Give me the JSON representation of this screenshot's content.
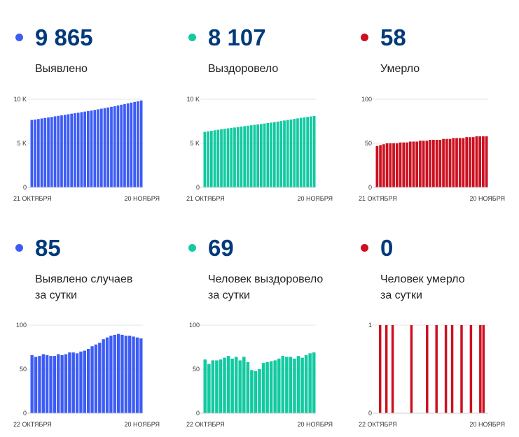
{
  "panels": [
    {
      "value": "9 865",
      "label_lines": [
        "Выявлено"
      ],
      "color": "#3d5cf5",
      "chart_data": {
        "type": "bar",
        "series_color": "#3d5cf5",
        "yticks": [
          "10 K",
          "5 K",
          "0"
        ],
        "ylim": [
          0,
          10000
        ],
        "xlabels": [
          "21 ОКТЯБРЯ",
          "20 НОЯБРЯ"
        ],
        "values": [
          7650,
          7700,
          7760,
          7820,
          7880,
          7940,
          8000,
          8060,
          8120,
          8180,
          8240,
          8300,
          8360,
          8420,
          8480,
          8540,
          8600,
          8660,
          8720,
          8790,
          8860,
          8930,
          9000,
          9070,
          9140,
          9220,
          9300,
          9380,
          9460,
          9540,
          9620,
          9700,
          9780,
          9865
        ]
      }
    },
    {
      "value": "8 107",
      "label_lines": [
        "Выздоровело"
      ],
      "color": "#13c9a1",
      "chart_data": {
        "type": "bar",
        "series_color": "#13c9a1",
        "yticks": [
          "10 K",
          "5 K",
          "0"
        ],
        "ylim": [
          0,
          10000
        ],
        "xlabels": [
          "21 ОКТЯБРЯ",
          "20 НОЯБРЯ"
        ],
        "values": [
          6300,
          6360,
          6420,
          6480,
          6540,
          6600,
          6650,
          6700,
          6750,
          6800,
          6850,
          6900,
          6950,
          7000,
          7050,
          7100,
          7150,
          7200,
          7250,
          7300,
          7350,
          7410,
          7470,
          7530,
          7590,
          7650,
          7710,
          7770,
          7830,
          7890,
          7950,
          8000,
          8050,
          8107
        ]
      }
    },
    {
      "value": "58",
      "label_lines": [
        "Умерло"
      ],
      "color": "#cc1020",
      "chart_data": {
        "type": "bar",
        "series_color": "#cc1020",
        "yticks": [
          "100",
          "50",
          "0"
        ],
        "ylim": [
          0,
          100
        ],
        "xlabels": [
          "21 ОКТЯБРЯ",
          "20 НОЯБРЯ"
        ],
        "values": [
          47,
          48,
          49,
          50,
          50,
          50,
          50,
          51,
          51,
          51,
          52,
          52,
          52,
          53,
          53,
          53,
          54,
          54,
          54,
          54,
          55,
          55,
          55,
          56,
          56,
          56,
          56,
          57,
          57,
          57,
          58,
          58,
          58,
          58
        ]
      }
    },
    {
      "value": "85",
      "label_lines": [
        "Выявлено случаев",
        "за сутки"
      ],
      "color": "#3d5cf5",
      "chart_data": {
        "type": "bar",
        "series_color": "#3d5cf5",
        "yticks": [
          "100",
          "50",
          "0"
        ],
        "ylim": [
          0,
          100
        ],
        "xlabels": [
          "22 ОКТЯБРЯ",
          "20 НОЯБРЯ"
        ],
        "values": [
          66,
          64,
          65,
          67,
          66,
          65,
          65,
          67,
          66,
          67,
          69,
          69,
          68,
          70,
          71,
          73,
          76,
          78,
          80,
          84,
          86,
          88,
          89,
          90,
          89,
          88,
          88,
          87,
          86,
          85
        ]
      }
    },
    {
      "value": "69",
      "label_lines": [
        "Человек выздоровело",
        "за сутки"
      ],
      "color": "#13c9a1",
      "chart_data": {
        "type": "bar",
        "series_color": "#13c9a1",
        "yticks": [
          "100",
          "50",
          "0"
        ],
        "ylim": [
          0,
          100
        ],
        "xlabels": [
          "22 ОКТЯБРЯ",
          "20 НОЯБРЯ"
        ],
        "values": [
          61,
          56,
          60,
          60,
          61,
          63,
          65,
          62,
          64,
          60,
          64,
          58,
          49,
          48,
          50,
          57,
          58,
          59,
          60,
          62,
          65,
          64,
          64,
          62,
          65,
          63,
          66,
          68,
          69
        ]
      }
    },
    {
      "value": "0",
      "label_lines": [
        "Человек умерло",
        "за сутки"
      ],
      "color": "#cc1020",
      "chart_data": {
        "type": "bar",
        "series_color": "#cc1020",
        "yticks": [
          "1",
          "0"
        ],
        "ylim": [
          0,
          1
        ],
        "xlabels": [
          "22 ОКТЯБРЯ",
          "20 НОЯБРЯ"
        ],
        "values": [
          0,
          1,
          0,
          1,
          0,
          1,
          0,
          0,
          0,
          0,
          0,
          1,
          0,
          0,
          0,
          0,
          1,
          0,
          0,
          1,
          0,
          0,
          1,
          0,
          1,
          0,
          0,
          1,
          0,
          0,
          1,
          0,
          0,
          1,
          1,
          0
        ]
      }
    }
  ]
}
